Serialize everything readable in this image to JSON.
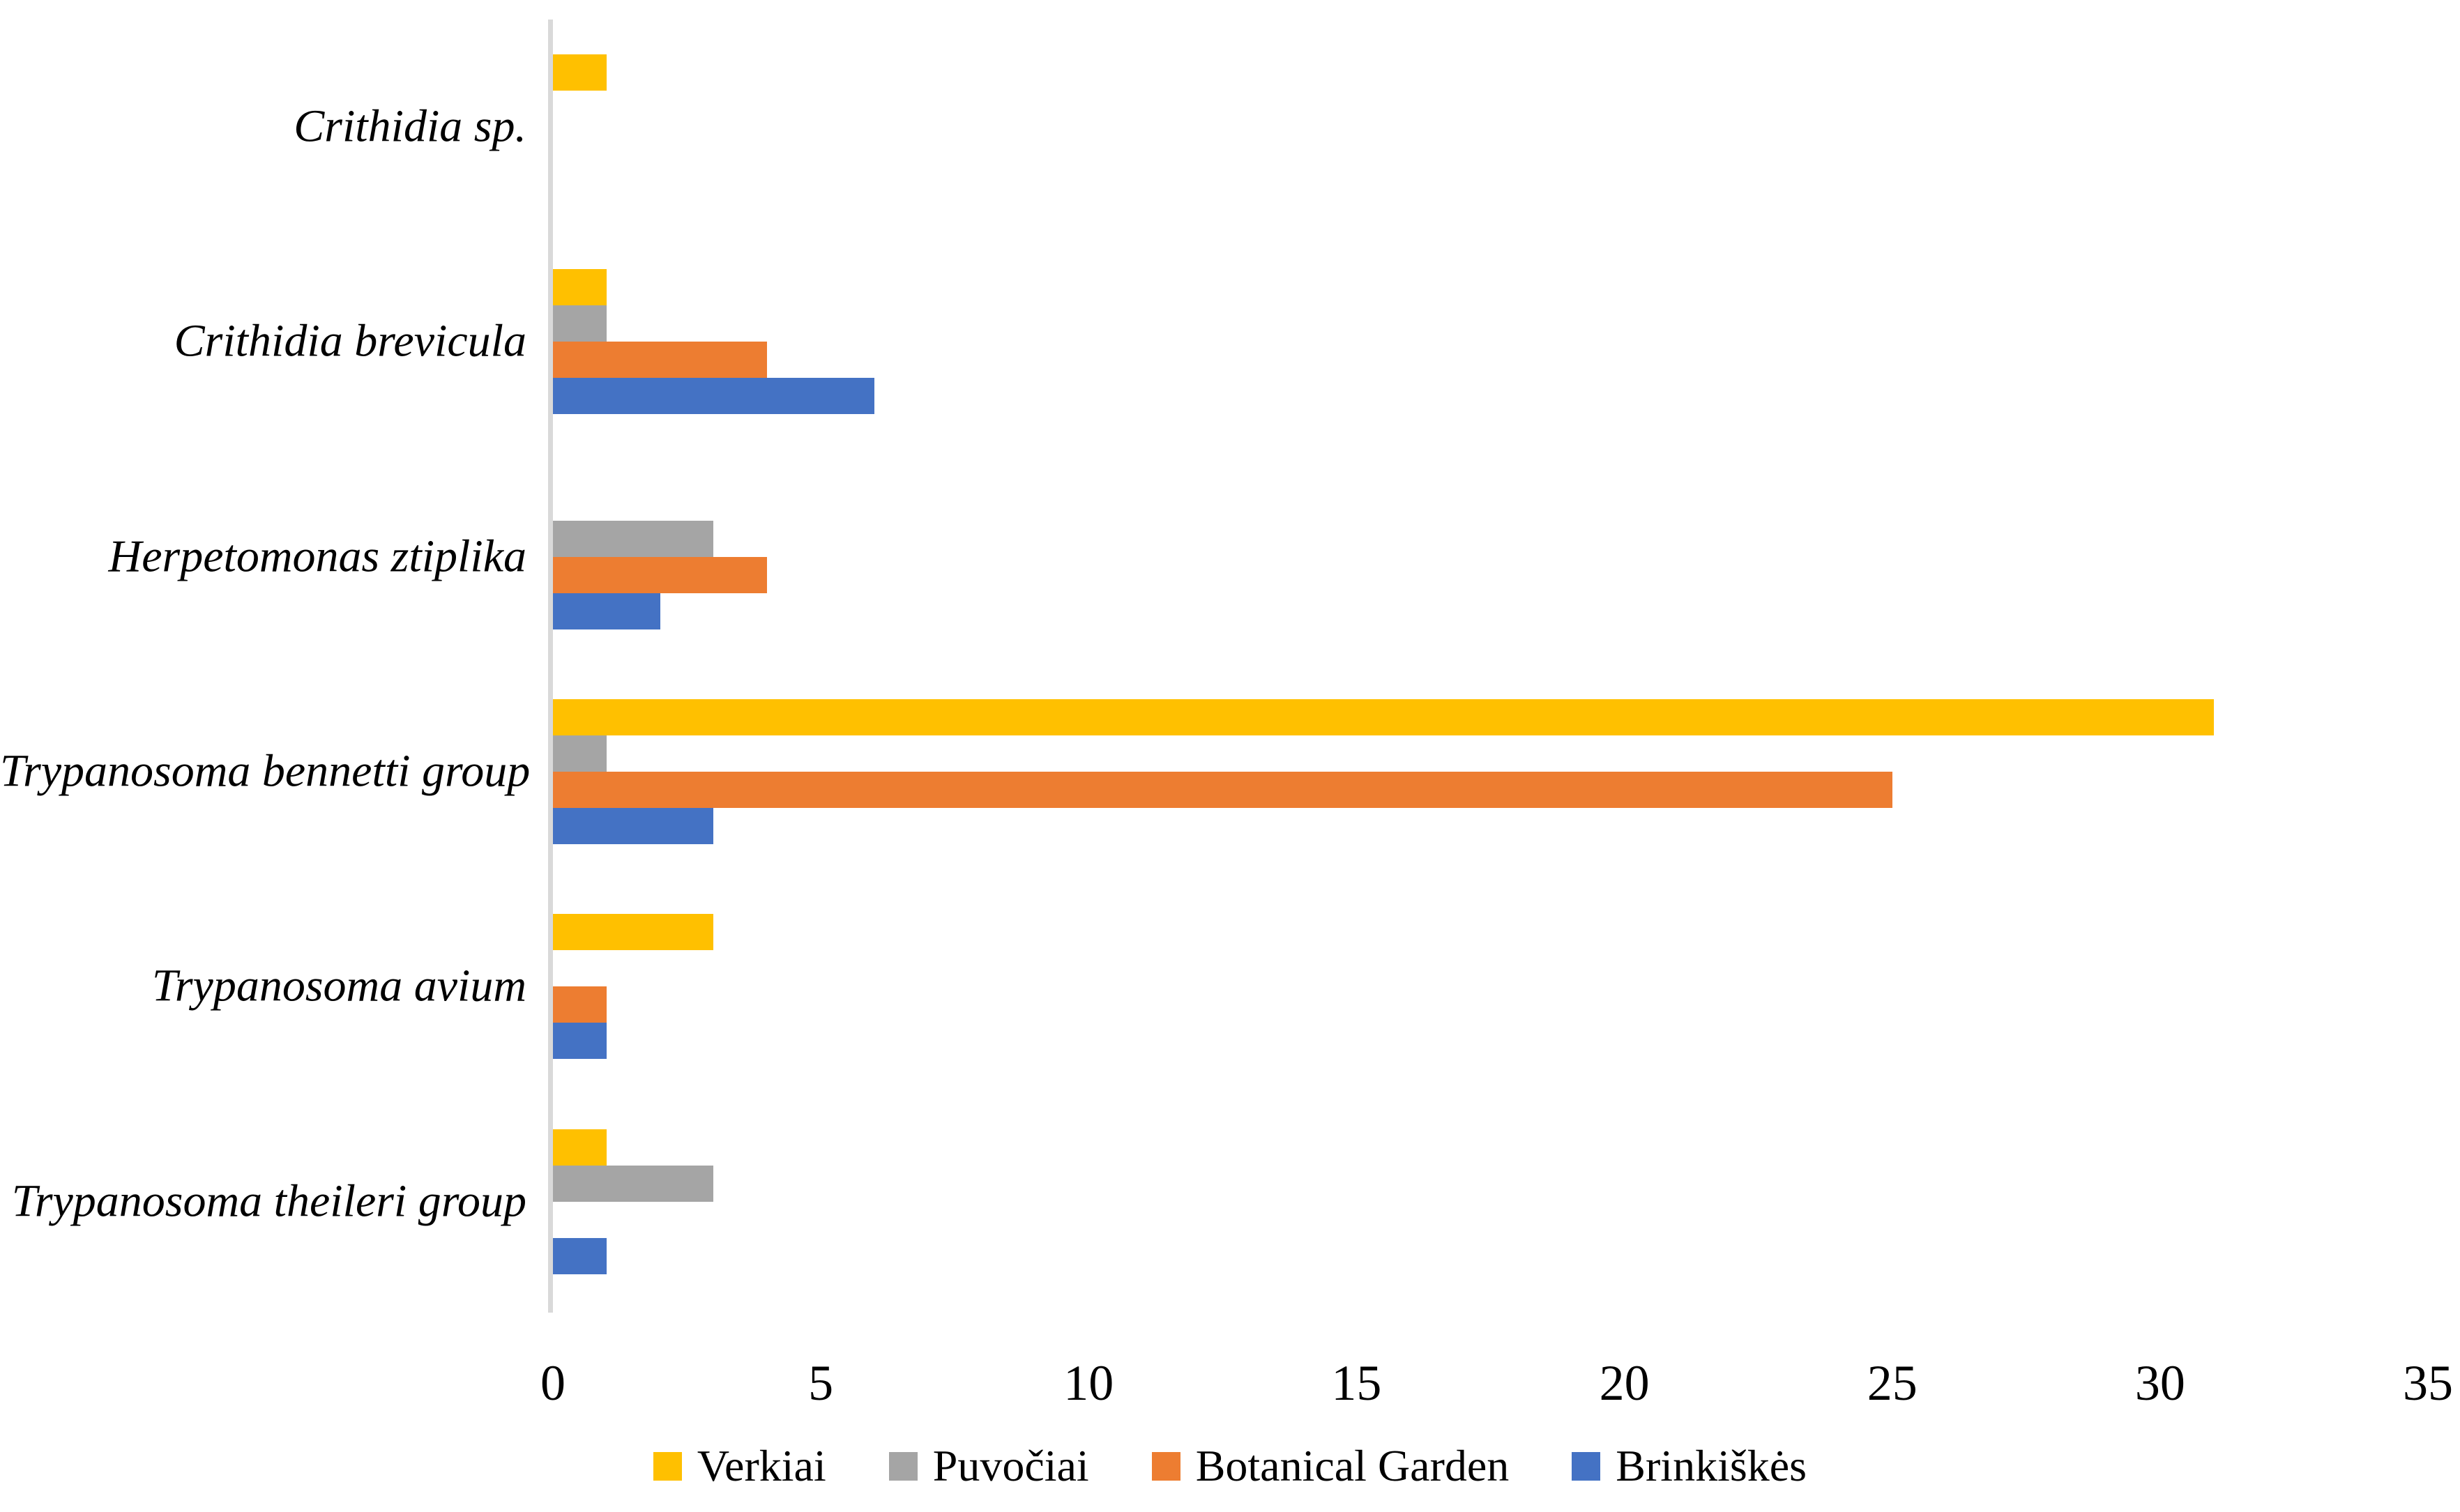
{
  "chart_data": {
    "type": "bar",
    "orientation": "horizontal",
    "title": "",
    "xlabel": "",
    "ylabel": "",
    "categories": [
      "Crithidia sp.",
      "Crithidia brevicula",
      "Herpetomonas ztiplika",
      "Trypanosoma bennetti group",
      "Trypanosoma avium",
      "Trypanosoma theileri group"
    ],
    "series": [
      {
        "name": "Verkiai",
        "color": "#FFC000",
        "values": [
          1,
          1,
          0,
          31,
          3,
          1
        ]
      },
      {
        "name": "Puvočiai",
        "color": "#A5A5A5",
        "values": [
          0,
          1,
          3,
          1,
          0,
          3
        ]
      },
      {
        "name": "Botanical Garden",
        "color": "#ED7D31",
        "values": [
          0,
          4,
          4,
          25,
          1,
          0
        ]
      },
      {
        "name": "Brinkiškės",
        "color": "#4472C4",
        "values": [
          0,
          6,
          2,
          3,
          1,
          1
        ]
      }
    ],
    "x_ticks": [
      "0",
      "5",
      "10",
      "15",
      "20",
      "25",
      "30",
      "35"
    ],
    "xlim": [
      0,
      35
    ],
    "grid": false,
    "legend_position": "bottom",
    "axis_line_color": "#D9D9D9",
    "background_color": "#FFFFFF",
    "text_color": "#000000"
  }
}
